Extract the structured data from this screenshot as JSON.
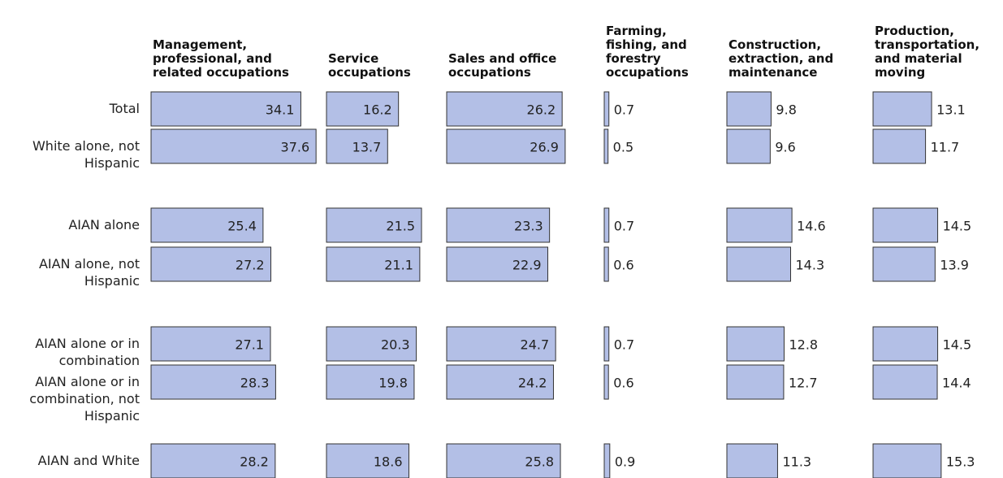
{
  "chart_data": {
    "type": "bar",
    "categories": [
      "Total",
      "White alone, not Hispanic",
      "AIAN alone",
      "AIAN alone, not Hispanic",
      "AIAN alone or in combination",
      "AIAN alone or in combination, not Hispanic",
      "AIAN and White"
    ],
    "color": "#b3bfe6",
    "series": [
      {
        "name": "Management, professional, and related occupations",
        "values": [
          34.1,
          37.6,
          25.4,
          27.2,
          27.1,
          28.3,
          28.2
        ]
      },
      {
        "name": "Service occupations",
        "values": [
          16.2,
          13.7,
          21.5,
          21.1,
          20.3,
          19.8,
          18.6
        ]
      },
      {
        "name": "Sales and office occupations",
        "values": [
          26.2,
          26.9,
          23.3,
          22.9,
          24.7,
          24.2,
          25.8
        ]
      },
      {
        "name": "Farming, fishing, and forestry occupations",
        "values": [
          0.7,
          0.5,
          0.7,
          0.6,
          0.7,
          0.6,
          0.9
        ]
      },
      {
        "name": "Construction, extraction, and maintenance",
        "values": [
          9.8,
          9.6,
          14.6,
          14.3,
          12.8,
          12.7,
          11.3
        ]
      },
      {
        "name": "Production, transportation, and material moving",
        "values": [
          13.1,
          11.7,
          14.5,
          13.9,
          14.5,
          14.4,
          15.3
        ]
      }
    ]
  }
}
